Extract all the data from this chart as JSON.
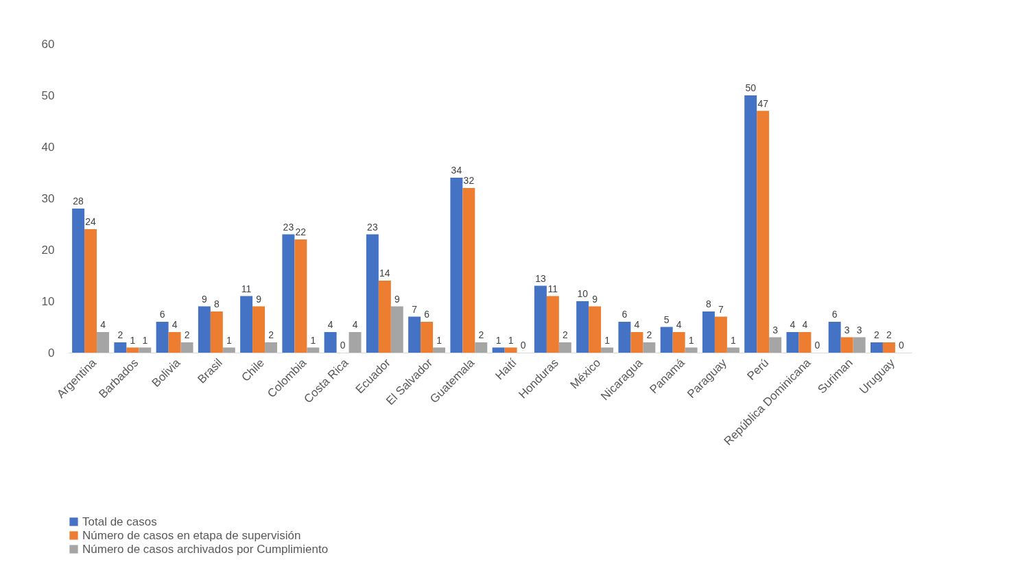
{
  "chart_data": {
    "type": "bar",
    "categories": [
      "Argentina",
      "Barbados",
      "Bolivia",
      "Brasil",
      "Chile",
      "Colombia",
      "Costa Rica",
      "Ecuador",
      "El Salvador",
      "Guatemala",
      "Haití",
      "Honduras",
      "México",
      "Nicaragua",
      "Panamá",
      "Paraguay",
      "Perú",
      "República Dominicana",
      "Suriman",
      "Uruguay"
    ],
    "series": [
      {
        "name": "Total de casos",
        "color": "#4472c4",
        "values": [
          28,
          2,
          6,
          9,
          11,
          23,
          4,
          23,
          7,
          34,
          1,
          13,
          10,
          6,
          5,
          8,
          50,
          4,
          6,
          2
        ]
      },
      {
        "name": "Número de casos en etapa de supervisión",
        "color": "#ed7d31",
        "values": [
          24,
          1,
          4,
          8,
          9,
          22,
          0,
          14,
          6,
          32,
          1,
          11,
          9,
          4,
          4,
          7,
          47,
          4,
          3,
          2
        ]
      },
      {
        "name": "Número de casos archivados por Cumplimiento",
        "color": "#a5a5a5",
        "values": [
          4,
          1,
          2,
          1,
          2,
          1,
          4,
          9,
          1,
          2,
          0,
          2,
          1,
          2,
          1,
          1,
          3,
          0,
          3,
          0
        ]
      }
    ],
    "ylim": [
      0,
      60
    ],
    "yticks": [
      0,
      10,
      20,
      30,
      40,
      50,
      60
    ],
    "grid": false,
    "legend": "bottom",
    "data_labels": true
  }
}
